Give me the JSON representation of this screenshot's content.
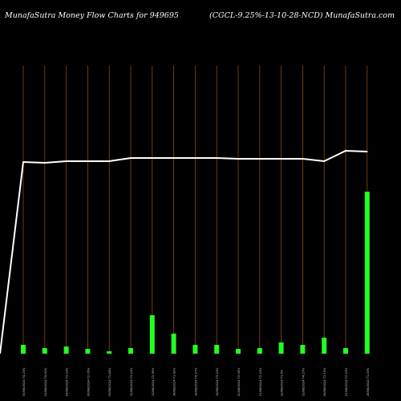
{
  "header": {
    "left": "MunafaSutra  Money Flow  Charts for 949695",
    "right": "(CGCL-9.25%-13-10-28-NCD) MunafaSutra.com"
  },
  "colors": {
    "background": "#000000",
    "bar": "#22ff22",
    "gridline": "#8a4a10",
    "line": "#ffffff",
    "label": "#cccccc"
  },
  "chart_data": {
    "type": "bar",
    "title": "",
    "xlabel": "",
    "ylabel": "",
    "grid": true,
    "categories": [
      "30/08/2024 T4.23%",
      "02/08/2024 T4.53%",
      "04/08/2024 T3.23%",
      "06/08/2024 T2.05%",
      "09/08/2024 T3.45%",
      "12/08/2024 T3.23%",
      "13/08/2024 T2.95%",
      "14/08/2024 T1.42%",
      "16/08/2024 T4.27%",
      "19/08/2024 T3.03%",
      "20/08/2024 T2.05%",
      "21/08/2024 T2.23%",
      "22/08/2024 T1.5%",
      "23/08/2024 T4.27%",
      "26/08/2024 T3.13%",
      "27/08/2024 T2.23%",
      "28/08/2024 T1.03%"
    ],
    "series": [
      {
        "type": "bar",
        "values": [
          11,
          7,
          9,
          6,
          3,
          7,
          48,
          25,
          11,
          11,
          6,
          7,
          14,
          11,
          20,
          7,
          202
        ]
      },
      {
        "type": "line",
        "values": [
          239,
          238,
          240,
          240,
          240,
          244,
          244,
          244,
          244,
          244,
          243,
          243,
          243,
          243,
          240,
          253,
          252
        ]
      }
    ],
    "ylim": [
      0,
      400
    ]
  }
}
